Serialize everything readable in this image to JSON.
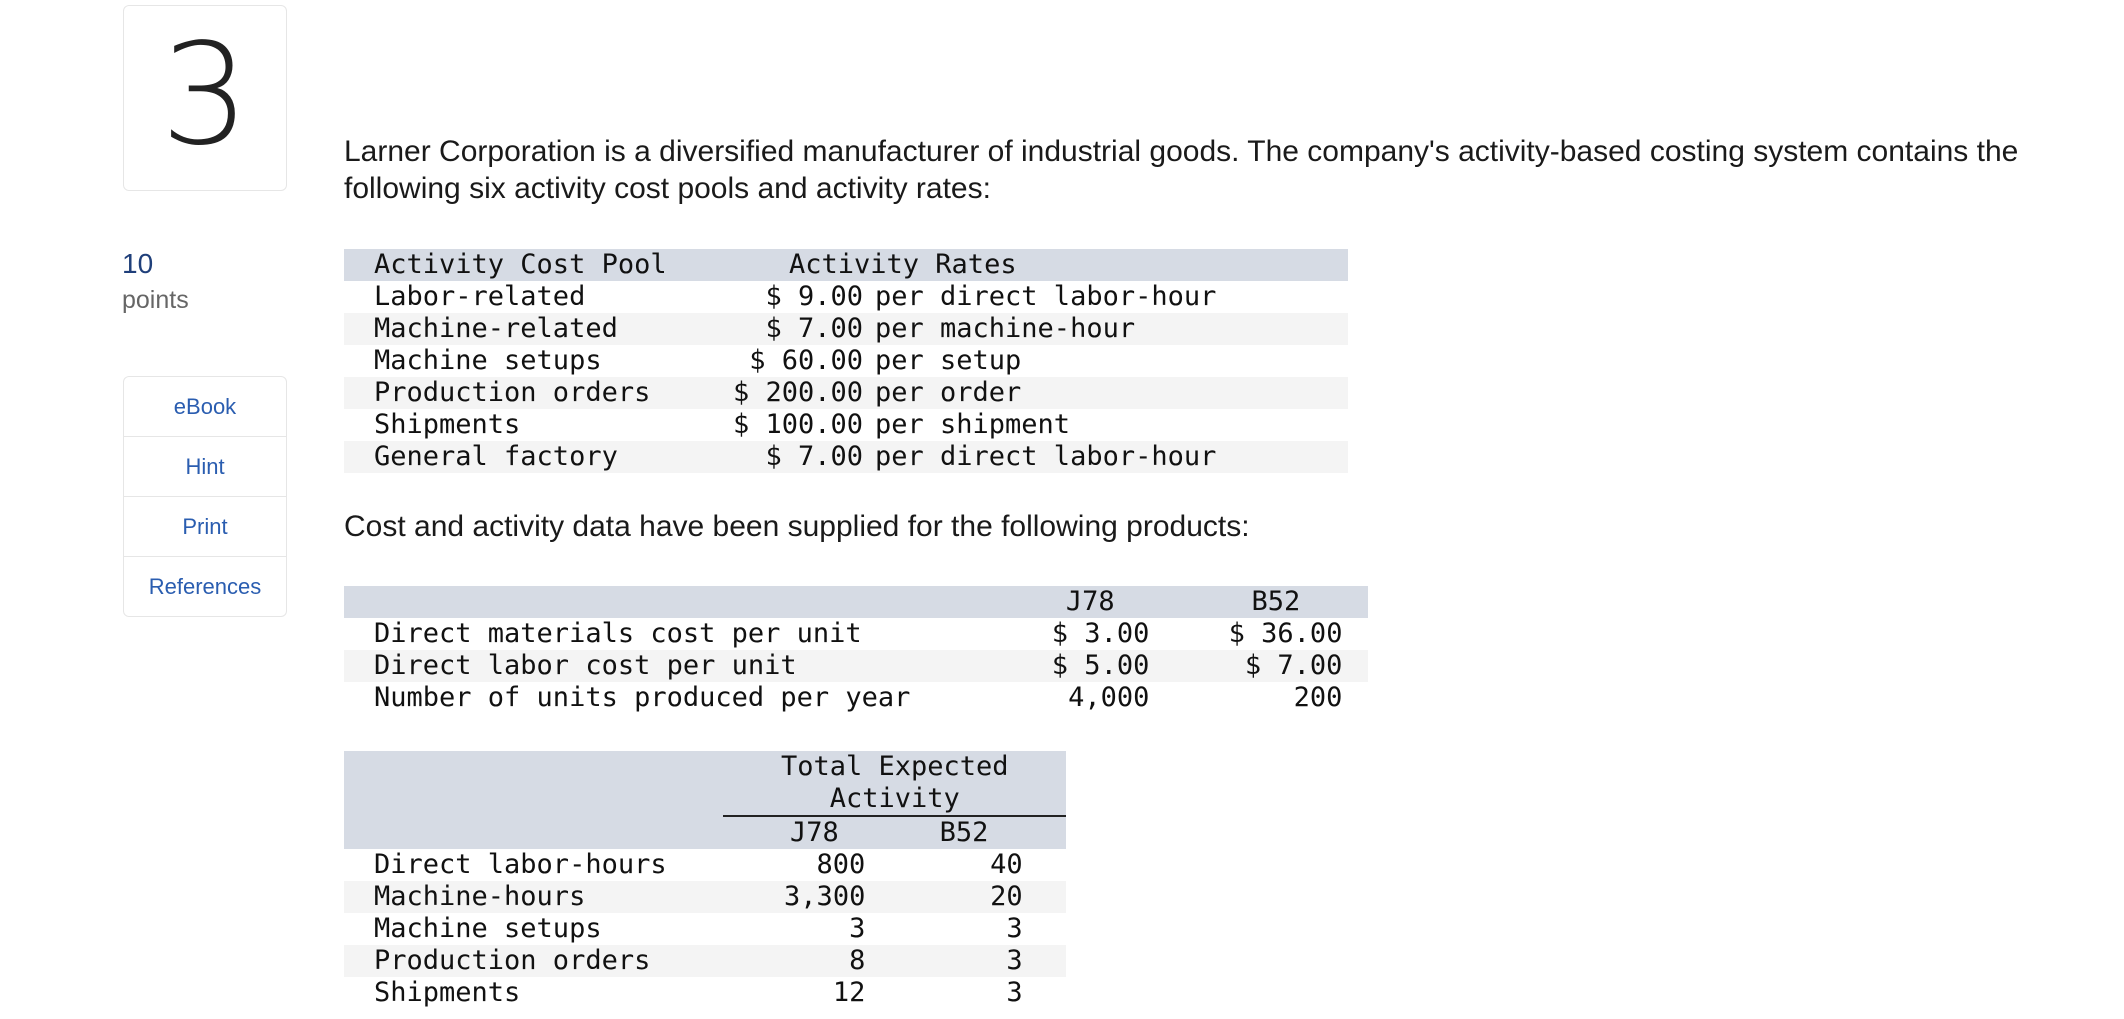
{
  "question": {
    "number": "3"
  },
  "points": {
    "value": "10",
    "label": "points"
  },
  "tools": [
    "eBook",
    "Hint",
    "Print",
    "References"
  ],
  "intro": "Larner Corporation is a diversified manufacturer of industrial goods. The company's activity-based costing system contains the following six activity cost pools and activity rates:",
  "pools_table": {
    "headers": [
      "Activity Cost Pool",
      "Activity Rates"
    ],
    "rows": [
      [
        "Labor-related",
        "$ 9.00",
        "per direct labor-hour"
      ],
      [
        "Machine-related",
        "$ 7.00",
        "per machine-hour"
      ],
      [
        "Machine setups",
        "$ 60.00",
        "per setup"
      ],
      [
        "Production orders",
        "$ 200.00",
        "per order"
      ],
      [
        "Shipments",
        "$ 100.00",
        "per shipment"
      ],
      [
        "General factory",
        "$ 7.00",
        "per direct labor-hour"
      ]
    ]
  },
  "para2": "Cost and activity data have been supplied for the following products:",
  "cost_table": {
    "headers": [
      "",
      "J78",
      "B52"
    ],
    "rows": [
      [
        "Direct materials cost per unit",
        "$ 3.00",
        "$ 36.00"
      ],
      [
        "Direct labor cost per unit",
        "$ 5.00",
        "$ 7.00"
      ],
      [
        "Number of units produced per year",
        "4,000",
        "200"
      ]
    ]
  },
  "activity_table": {
    "group_header": "Total Expected Activity",
    "headers": [
      "",
      "J78",
      "B52"
    ],
    "rows": [
      [
        "Direct labor-hours",
        "800",
        "40"
      ],
      [
        "Machine-hours",
        "3,300",
        "20"
      ],
      [
        "Machine setups",
        "3",
        "3"
      ],
      [
        "Production orders",
        "8",
        "3"
      ],
      [
        "Shipments",
        "12",
        "3"
      ]
    ]
  }
}
